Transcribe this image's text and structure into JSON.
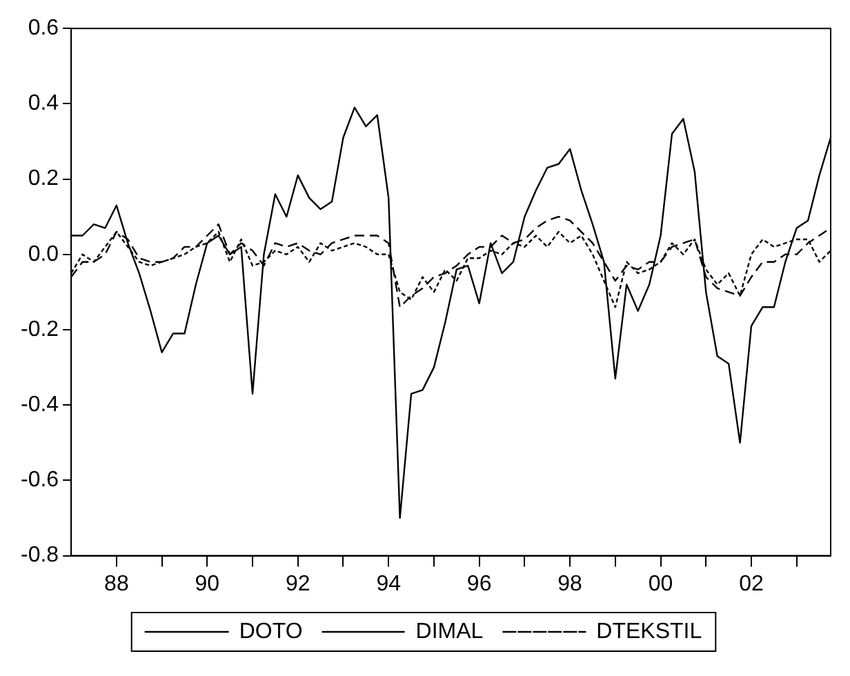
{
  "chart_data": {
    "type": "line",
    "x": [
      1987,
      1987.25,
      1987.5,
      1987.75,
      1988,
      1988.25,
      1988.5,
      1988.75,
      1989,
      1989.25,
      1989.5,
      1989.75,
      1990,
      1990.25,
      1990.5,
      1990.75,
      1991,
      1991.25,
      1991.5,
      1991.75,
      1992,
      1992.25,
      1992.5,
      1992.75,
      1993,
      1993.25,
      1993.5,
      1993.75,
      1994,
      1994.25,
      1994.5,
      1994.75,
      1995,
      1995.25,
      1995.5,
      1995.75,
      1996,
      1996.25,
      1996.5,
      1996.75,
      1997,
      1997.25,
      1997.5,
      1997.75,
      1998,
      1998.25,
      1998.5,
      1998.75,
      1999,
      1999.25,
      1999.5,
      1999.75,
      2000,
      2000.25,
      2000.5,
      2000.75,
      2001,
      2001.25,
      2001.5,
      2001.75,
      2002,
      2002.25,
      2002.5,
      2002.75,
      2003,
      2003.25,
      2003.5,
      2003.75
    ],
    "series": [
      {
        "name": "DOTO",
        "color": "#000000",
        "line_style": "solid",
        "values": [
          0.05,
          0.05,
          0.08,
          0.07,
          0.13,
          0.03,
          -0.05,
          -0.15,
          -0.26,
          -0.21,
          -0.21,
          -0.08,
          0.03,
          0.05,
          0.0,
          0.02,
          -0.37,
          0.0,
          0.16,
          0.1,
          0.21,
          0.15,
          0.12,
          0.14,
          0.31,
          0.39,
          0.34,
          0.37,
          0.15,
          -0.7,
          -0.37,
          -0.36,
          -0.3,
          -0.18,
          -0.04,
          -0.03,
          -0.13,
          0.03,
          -0.05,
          -0.02,
          0.1,
          0.17,
          0.23,
          0.24,
          0.28,
          0.17,
          0.08,
          -0.02,
          -0.33,
          -0.08,
          -0.15,
          -0.08,
          0.05,
          0.32,
          0.36,
          0.22,
          -0.1,
          -0.27,
          -0.29,
          -0.5,
          -0.19,
          -0.14,
          -0.14,
          -0.02,
          0.07,
          0.09,
          0.21,
          0.31
        ]
      },
      {
        "name": "DIMAL",
        "color": "#000000",
        "line_style": "dotted",
        "values": [
          -0.05,
          0.0,
          -0.02,
          0.02,
          0.06,
          0.02,
          -0.02,
          -0.03,
          -0.02,
          -0.01,
          0.0,
          0.02,
          0.03,
          0.06,
          -0.02,
          0.04,
          -0.03,
          -0.02,
          0.01,
          0.0,
          0.02,
          -0.02,
          0.03,
          0.01,
          0.02,
          0.03,
          0.02,
          0.0,
          0.0,
          -0.1,
          -0.12,
          -0.06,
          -0.1,
          -0.04,
          -0.07,
          -0.01,
          -0.01,
          0.01,
          0.0,
          0.03,
          0.02,
          0.05,
          0.02,
          0.06,
          0.03,
          0.05,
          0.0,
          -0.07,
          -0.14,
          -0.02,
          -0.05,
          -0.04,
          -0.02,
          0.03,
          0.0,
          0.04,
          -0.04,
          -0.08,
          -0.05,
          -0.11,
          0.0,
          0.04,
          0.02,
          0.03,
          0.04,
          0.04,
          -0.02,
          0.01
        ]
      },
      {
        "name": "DTEKSTIL",
        "color": "#000000",
        "line_style": "dashed",
        "values": [
          -0.06,
          -0.02,
          -0.02,
          0.0,
          0.06,
          0.04,
          -0.01,
          -0.02,
          -0.02,
          -0.01,
          0.02,
          0.02,
          0.05,
          0.08,
          0.0,
          0.03,
          0.01,
          -0.03,
          0.03,
          0.02,
          0.03,
          0.01,
          0.0,
          0.03,
          0.04,
          0.05,
          0.05,
          0.05,
          0.03,
          -0.14,
          -0.11,
          -0.09,
          -0.06,
          -0.05,
          -0.03,
          0.0,
          0.02,
          0.02,
          0.05,
          0.03,
          0.04,
          0.07,
          0.09,
          0.1,
          0.09,
          0.06,
          0.03,
          -0.02,
          -0.07,
          -0.03,
          -0.04,
          -0.02,
          -0.02,
          0.02,
          0.03,
          0.04,
          -0.06,
          -0.09,
          -0.1,
          -0.11,
          -0.06,
          -0.02,
          -0.02,
          0.0,
          0.0,
          0.03,
          0.05,
          0.07
        ]
      }
    ],
    "xlim": [
      1987,
      2003.75
    ],
    "xticks": [
      {
        "value": 1988,
        "label": "88"
      },
      {
        "value": 1989,
        "label": null
      },
      {
        "value": 1990,
        "label": "90"
      },
      {
        "value": 1991,
        "label": null
      },
      {
        "value": 1992,
        "label": "92"
      },
      {
        "value": 1993,
        "label": null
      },
      {
        "value": 1994,
        "label": "94"
      },
      {
        "value": 1995,
        "label": null
      },
      {
        "value": 1996,
        "label": "96"
      },
      {
        "value": 1997,
        "label": null
      },
      {
        "value": 1998,
        "label": "98"
      },
      {
        "value": 1999,
        "label": null
      },
      {
        "value": 2000,
        "label": "00"
      },
      {
        "value": 2001,
        "label": null
      },
      {
        "value": 2002,
        "label": "02"
      },
      {
        "value": 2003,
        "label": null
      }
    ],
    "ylim": [
      -0.8,
      0.6
    ],
    "yticks": [
      -0.8,
      -0.6,
      -0.4,
      -0.2,
      {
        "value": 0,
        "label": "0.0"
      },
      0.2,
      0.4,
      0.6
    ],
    "grid": false,
    "legend": "bottom",
    "marker": "none"
  }
}
